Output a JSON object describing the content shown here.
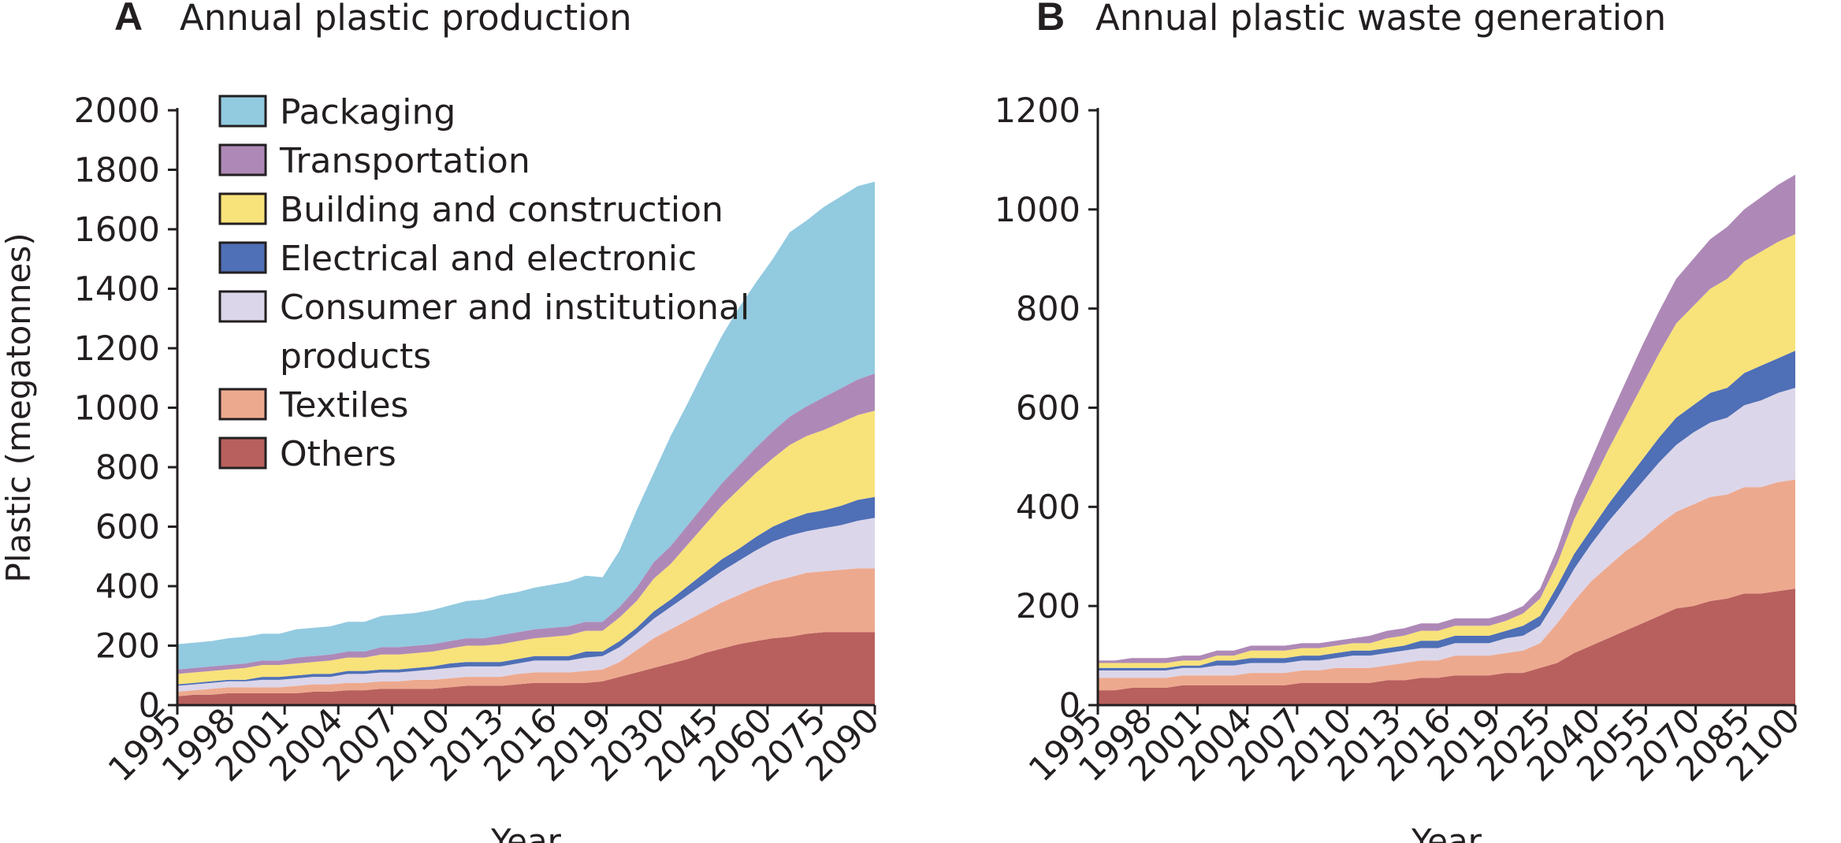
{
  "chart_data": [
    {
      "type": "area",
      "panel_letter": "A",
      "title": "Annual plastic production",
      "xlabel": "Year",
      "ylabel": "Plastic (megatonnes)",
      "ylim": [
        0,
        2000
      ],
      "yticks": [
        0,
        200,
        400,
        600,
        800,
        1000,
        1200,
        1400,
        1600,
        1800,
        2000
      ],
      "stacked": true,
      "legend_position": "top-left",
      "x": [
        "1995",
        "1996",
        "1997",
        "1998",
        "1999",
        "2000",
        "2001",
        "2002",
        "2003",
        "2004",
        "2005",
        "2006",
        "2007",
        "2008",
        "2009",
        "2010",
        "2011",
        "2012",
        "2013",
        "2014",
        "2015",
        "2016",
        "2017",
        "2018",
        "2019",
        "2020",
        "2025",
        "2030",
        "2035",
        "2040",
        "2045",
        "2050",
        "2055",
        "2060",
        "2065",
        "2070",
        "2075",
        "2080",
        "2085",
        "2090",
        "2095",
        "2100"
      ],
      "xtick_labels": [
        "1995",
        "1998",
        "2001",
        "2004",
        "2007",
        "2010",
        "2013",
        "2016",
        "2019",
        "2030",
        "2045",
        "2060",
        "2075",
        "2090"
      ],
      "series": [
        {
          "name": "Others",
          "color": "#b8605e",
          "values": [
            30,
            35,
            35,
            40,
            40,
            40,
            40,
            40,
            45,
            45,
            50,
            50,
            55,
            55,
            55,
            55,
            60,
            65,
            65,
            65,
            70,
            75,
            75,
            75,
            75,
            80,
            95,
            110,
            125,
            140,
            155,
            175,
            190,
            205,
            215,
            225,
            230,
            240,
            245,
            245,
            245,
            245
          ]
        },
        {
          "name": "Textiles",
          "color": "#eda98e",
          "values": [
            15,
            15,
            20,
            20,
            20,
            20,
            20,
            25,
            25,
            25,
            25,
            25,
            25,
            25,
            30,
            30,
            30,
            30,
            30,
            30,
            35,
            35,
            35,
            35,
            40,
            40,
            50,
            75,
            100,
            115,
            130,
            140,
            155,
            165,
            180,
            190,
            200,
            205,
            205,
            210,
            215,
            215
          ]
        },
        {
          "name": "Consumer and institutional products",
          "color": "#dcd6ea",
          "values": [
            20,
            20,
            20,
            20,
            20,
            25,
            25,
            25,
            25,
            25,
            30,
            30,
            30,
            30,
            30,
            35,
            35,
            35,
            35,
            35,
            35,
            40,
            40,
            40,
            45,
            45,
            50,
            55,
            65,
            75,
            85,
            95,
            105,
            115,
            125,
            135,
            140,
            140,
            145,
            150,
            160,
            170
          ]
        },
        {
          "name": "Electrical and electronic",
          "color": "#4f6fb6",
          "values": [
            5,
            5,
            5,
            5,
            5,
            10,
            10,
            10,
            10,
            10,
            10,
            10,
            10,
            10,
            10,
            10,
            15,
            15,
            15,
            15,
            15,
            15,
            15,
            15,
            20,
            15,
            20,
            20,
            25,
            25,
            30,
            35,
            40,
            40,
            45,
            50,
            55,
            60,
            60,
            65,
            70,
            70
          ]
        },
        {
          "name": "Building and construction",
          "color": "#f8e27a",
          "values": [
            35,
            35,
            35,
            35,
            40,
            40,
            40,
            40,
            40,
            45,
            45,
            45,
            50,
            50,
            50,
            50,
            50,
            55,
            55,
            60,
            60,
            60,
            65,
            70,
            70,
            70,
            80,
            90,
            110,
            120,
            140,
            160,
            180,
            200,
            215,
            230,
            250,
            260,
            270,
            280,
            285,
            290
          ]
        },
        {
          "name": "Transportation",
          "color": "#ae89b7",
          "values": [
            15,
            15,
            15,
            15,
            15,
            15,
            15,
            20,
            20,
            20,
            20,
            20,
            25,
            25,
            25,
            25,
            25,
            25,
            25,
            30,
            30,
            30,
            30,
            30,
            30,
            30,
            35,
            45,
            55,
            60,
            65,
            70,
            75,
            80,
            85,
            90,
            95,
            100,
            110,
            115,
            120,
            125
          ]
        },
        {
          "name": "Packaging",
          "color": "#92cae0",
          "values": [
            85,
            85,
            85,
            90,
            90,
            90,
            90,
            95,
            95,
            95,
            100,
            100,
            105,
            110,
            110,
            115,
            120,
            125,
            130,
            135,
            135,
            140,
            145,
            150,
            155,
            150,
            190,
            260,
            300,
            370,
            410,
            455,
            495,
            530,
            555,
            580,
            620,
            625,
            640,
            645,
            650,
            645
          ]
        }
      ]
    },
    {
      "type": "area",
      "panel_letter": "B",
      "title": "Annual plastic waste generation",
      "xlabel": "Year",
      "ylabel": "",
      "ylim": [
        0,
        1200
      ],
      "yticks": [
        0,
        200,
        400,
        600,
        800,
        1000,
        1200
      ],
      "stacked": true,
      "x": [
        "1995",
        "1996",
        "1997",
        "1998",
        "1999",
        "2000",
        "2001",
        "2002",
        "2003",
        "2004",
        "2005",
        "2006",
        "2007",
        "2008",
        "2009",
        "2010",
        "2011",
        "2012",
        "2013",
        "2014",
        "2015",
        "2016",
        "2017",
        "2018",
        "2019",
        "2020",
        "2025",
        "2030",
        "2035",
        "2040",
        "2045",
        "2050",
        "2055",
        "2060",
        "2065",
        "2070",
        "2075",
        "2080",
        "2085",
        "2090",
        "2095",
        "2100"
      ],
      "xtick_labels": [
        "1995",
        "1998",
        "2001",
        "2004",
        "2007",
        "2010",
        "2013",
        "2016",
        "2019",
        "2025",
        "2040",
        "2055",
        "2070",
        "2085",
        "2100"
      ],
      "series": [
        {
          "name": "Others",
          "color": "#b8605e",
          "values": [
            30,
            30,
            35,
            35,
            35,
            40,
            40,
            40,
            40,
            40,
            40,
            40,
            45,
            45,
            45,
            45,
            45,
            50,
            50,
            55,
            55,
            60,
            60,
            60,
            65,
            65,
            75,
            85,
            105,
            120,
            135,
            150,
            165,
            180,
            195,
            200,
            210,
            215,
            225,
            225,
            230,
            235
          ]
        },
        {
          "name": "Textiles",
          "color": "#eda98e",
          "values": [
            25,
            25,
            20,
            20,
            20,
            20,
            20,
            20,
            20,
            25,
            25,
            25,
            25,
            25,
            30,
            30,
            30,
            30,
            35,
            35,
            35,
            40,
            40,
            40,
            40,
            45,
            50,
            80,
            105,
            130,
            145,
            160,
            170,
            185,
            195,
            205,
            210,
            210,
            215,
            215,
            220,
            220
          ]
        },
        {
          "name": "Consumer and institutional products",
          "color": "#dcd6ea",
          "values": [
            15,
            15,
            15,
            15,
            15,
            15,
            15,
            20,
            20,
            20,
            20,
            20,
            20,
            20,
            20,
            25,
            25,
            25,
            25,
            25,
            25,
            25,
            25,
            25,
            30,
            30,
            35,
            50,
            65,
            75,
            90,
            100,
            115,
            125,
            135,
            145,
            150,
            155,
            165,
            175,
            180,
            185
          ]
        },
        {
          "name": "Electrical and electronic",
          "color": "#4f6fb6",
          "values": [
            5,
            5,
            5,
            5,
            5,
            5,
            5,
            10,
            10,
            10,
            10,
            10,
            10,
            10,
            10,
            10,
            10,
            10,
            10,
            15,
            15,
            15,
            15,
            15,
            15,
            20,
            20,
            25,
            30,
            30,
            35,
            40,
            45,
            50,
            55,
            55,
            60,
            60,
            65,
            70,
            70,
            75
          ]
        },
        {
          "name": "Building and construction",
          "color": "#f8e27a",
          "values": [
            10,
            10,
            10,
            10,
            10,
            10,
            10,
            10,
            10,
            15,
            15,
            15,
            15,
            15,
            15,
            15,
            15,
            20,
            20,
            20,
            20,
            20,
            20,
            20,
            20,
            25,
            35,
            45,
            70,
            90,
            110,
            130,
            150,
            170,
            190,
            200,
            210,
            220,
            225,
            230,
            235,
            235
          ]
        },
        {
          "name": "Transportation",
          "color": "#ae89b7",
          "values": [
            5,
            5,
            10,
            10,
            10,
            10,
            10,
            10,
            10,
            10,
            10,
            10,
            10,
            10,
            10,
            10,
            15,
            15,
            15,
            15,
            15,
            15,
            15,
            15,
            15,
            15,
            20,
            30,
            40,
            50,
            60,
            70,
            80,
            85,
            90,
            95,
            100,
            105,
            105,
            110,
            115,
            120
          ]
        },
        {
          "name": "Packaging",
          "color": "#92cae0",
          "values": [
            0,
            0,
            0,
            0,
            0,
            0,
            0,
            0,
            0,
            0,
            0,
            0,
            0,
            0,
            0,
            0,
            0,
            0,
            0,
            0,
            0,
            0,
            0,
            0,
            0,
            0,
            0,
            0,
            0,
            0,
            0,
            0,
            0,
            0,
            0,
            0,
            0,
            0,
            0,
            0,
            0,
            0
          ]
        }
      ]
    }
  ],
  "legend": {
    "items": [
      {
        "lines": [
          "Packaging"
        ],
        "color": "#92cae0"
      },
      {
        "lines": [
          "Transportation"
        ],
        "color": "#ae89b7"
      },
      {
        "lines": [
          "Building and construction"
        ],
        "color": "#f8e27a"
      },
      {
        "lines": [
          "Electrical and electronic"
        ],
        "color": "#4f6fb6"
      },
      {
        "lines": [
          "Consumer and institutional",
          "products"
        ],
        "color": "#dcd6ea"
      },
      {
        "lines": [
          "Textiles"
        ],
        "color": "#eda98e"
      },
      {
        "lines": [
          "Others"
        ],
        "color": "#b8605e"
      }
    ]
  }
}
